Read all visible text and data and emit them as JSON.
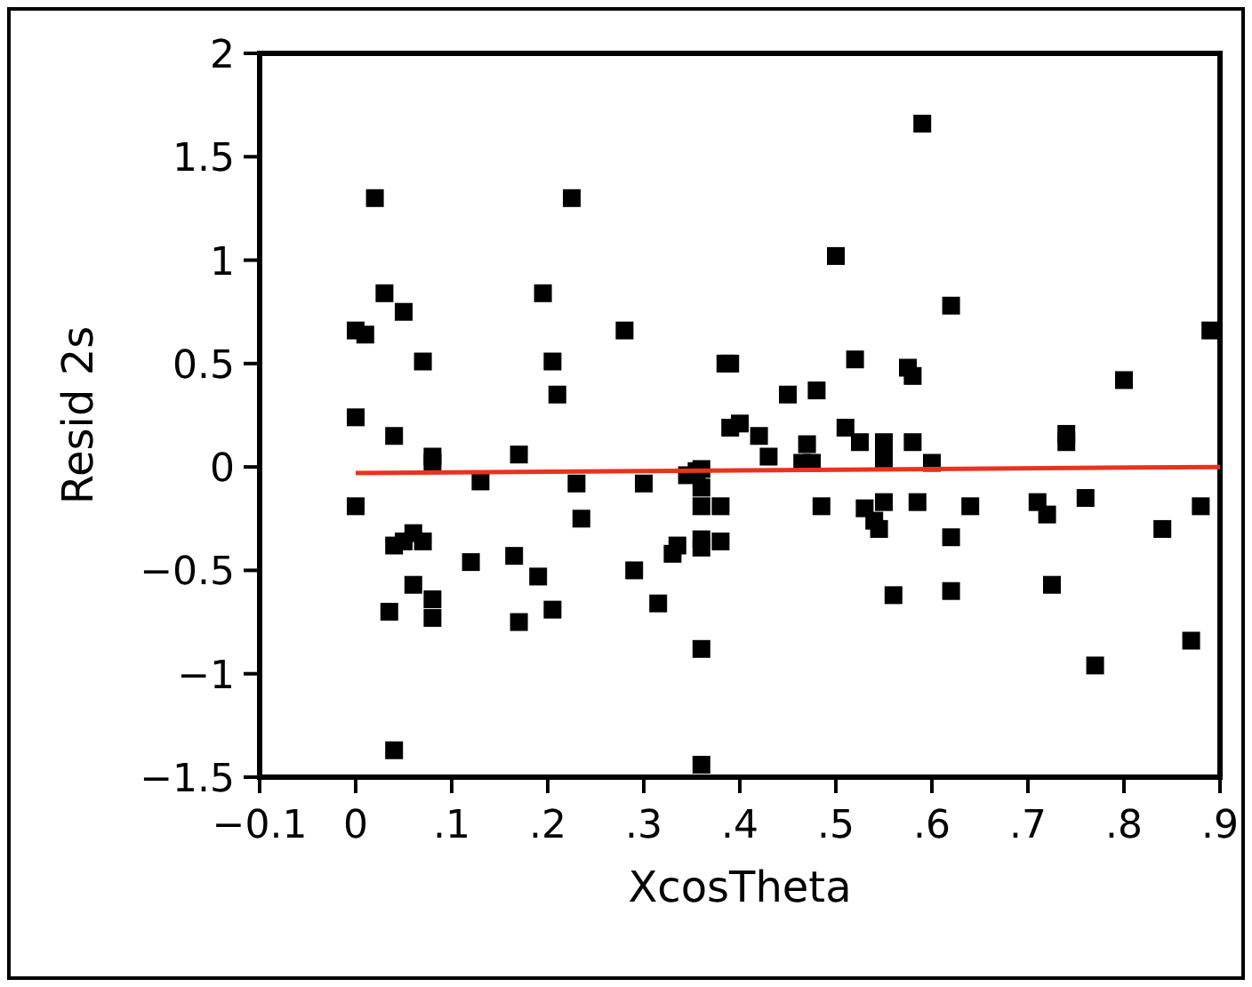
{
  "chart_data": {
    "type": "scatter",
    "xlabel": "XcosTheta",
    "ylabel": "Resid 2s",
    "marker": "square",
    "grid": false,
    "xlim": [
      -0.1,
      0.9
    ],
    "xticks": [
      {
        "value": -0.1,
        "label": "−0.1"
      },
      0,
      {
        "value": 0.1,
        "label": ".1"
      },
      {
        "value": 0.2,
        "label": ".2"
      },
      {
        "value": 0.3,
        "label": ".3"
      },
      {
        "value": 0.4,
        "label": ".4"
      },
      {
        "value": 0.5,
        "label": ".5"
      },
      {
        "value": 0.6,
        "label": ".6"
      },
      {
        "value": 0.7,
        "label": ".7"
      },
      {
        "value": 0.8,
        "label": ".8"
      },
      {
        "value": 0.9,
        "label": ".9"
      }
    ],
    "ylim": [
      -1.5,
      2
    ],
    "yticks": [
      {
        "value": -1.5,
        "label": "−1.5"
      },
      {
        "value": -1,
        "label": "−1"
      },
      {
        "value": -0.5,
        "label": "−0.5"
      },
      0,
      0.5,
      1,
      1.5,
      2
    ],
    "series": [
      {
        "color": "#000000",
        "x": [
          0,
          0.01,
          0,
          0,
          0.02,
          0.03,
          0.04,
          0.05,
          0.07,
          0.04,
          0.06,
          0.05,
          0.06,
          0.08,
          0.08,
          0.07,
          0.08,
          0.08,
          0.035,
          0.04,
          0.13,
          0.12,
          0.17,
          0.165,
          0.17,
          0.19,
          0.195,
          0.205,
          0.21,
          0.205,
          0.225,
          0.23,
          0.235,
          0.28,
          0.29,
          0.3,
          0.315,
          0.33,
          0.335,
          0.345,
          0.355,
          0.36,
          0.36,
          0.36,
          0.36,
          0.36,
          0.36,
          0.36,
          0.38,
          0.38,
          0.385,
          0.39,
          0.39,
          0.4,
          0.42,
          0.43,
          0.45,
          0.47,
          0.465,
          0.475,
          0.48,
          0.485,
          0.5,
          0.51,
          0.52,
          0.525,
          0.53,
          0.54,
          0.545,
          0.55,
          0.55,
          0.55,
          0.56,
          0.575,
          0.58,
          0.58,
          0.585,
          0.59,
          0.6,
          0.62,
          0.62,
          0.62,
          0.64,
          0.71,
          0.72,
          0.725,
          0.74,
          0.74,
          0.76,
          0.77,
          0.8,
          0.84,
          0.87,
          0.88,
          0.89
        ],
        "values": [
          0.66,
          0.64,
          0.24,
          -0.19,
          1.3,
          0.84,
          0.15,
          0.75,
          0.51,
          -0.38,
          -0.32,
          -0.36,
          -0.57,
          0.05,
          0.02,
          -0.36,
          -0.64,
          -0.73,
          -0.7,
          -1.37,
          -0.07,
          -0.46,
          0.06,
          -0.43,
          -0.75,
          -0.53,
          0.84,
          0.51,
          0.35,
          -0.69,
          1.3,
          -0.08,
          -0.25,
          0.66,
          -0.5,
          -0.08,
          -0.66,
          -0.42,
          -0.38,
          -0.04,
          -0.02,
          -0.01,
          -0.1,
          -0.19,
          -0.35,
          -0.39,
          -0.88,
          -1.44,
          -0.19,
          -0.36,
          0.5,
          0.5,
          0.19,
          0.21,
          0.15,
          0.05,
          0.35,
          0.11,
          0.02,
          0.02,
          0.37,
          -0.19,
          1.02,
          0.19,
          0.52,
          0.12,
          -0.2,
          -0.26,
          -0.3,
          0.12,
          0.04,
          -0.17,
          -0.62,
          0.48,
          0.44,
          0.12,
          -0.17,
          1.66,
          0.02,
          0.78,
          -0.34,
          -0.6,
          -0.19,
          -0.17,
          -0.23,
          -0.57,
          0.16,
          0.12,
          -0.15,
          -0.96,
          0.42,
          -0.3,
          -0.84,
          -0.19,
          0.66
        ]
      },
      {
        "type": "line",
        "color": "#e8331e",
        "marker": "none",
        "x": [
          0,
          0.9
        ],
        "values": [
          -0.03,
          0.0
        ]
      }
    ]
  }
}
